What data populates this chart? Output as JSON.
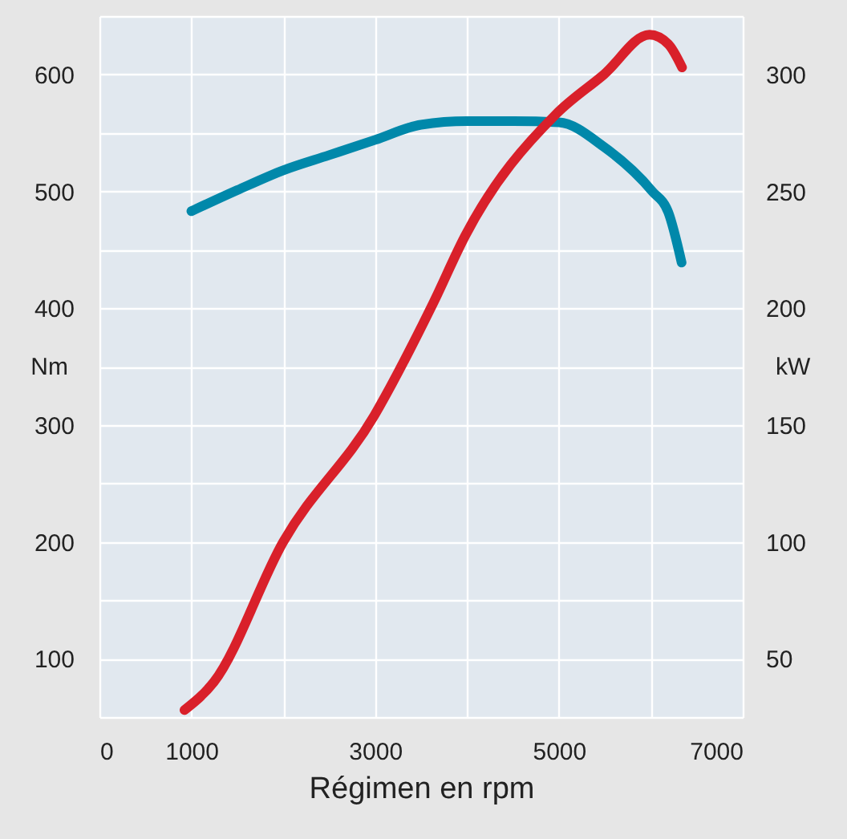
{
  "chart_data": {
    "type": "line",
    "xlabel": "Régimen en rpm",
    "ylabel": "Nm",
    "y2label": "kW",
    "xlim": [
      0,
      7000
    ],
    "xticks": [
      0,
      1000,
      {
        "value": 2000,
        "label": null
      },
      3000,
      {
        "value": 4000,
        "label": null
      },
      5000,
      {
        "value": 6000,
        "label": null
      },
      7000
    ],
    "ylim": [
      50,
      650
    ],
    "yticks": [
      {
        "value": 50,
        "label": null
      },
      100,
      {
        "value": 150,
        "label": null
      },
      200,
      {
        "value": 250,
        "label": null
      },
      300,
      {
        "value": 350,
        "label": null
      },
      400,
      {
        "value": 450,
        "label": null
      },
      500,
      {
        "value": 550,
        "label": null
      },
      600,
      {
        "value": 650,
        "label": null
      }
    ],
    "y2lim": [
      25,
      325
    ],
    "y2ticks": [
      50,
      100,
      150,
      200,
      250,
      300
    ],
    "grid": true,
    "line_style": "solid",
    "marker": "none",
    "series": [
      {
        "color": "#0088aa",
        "x": [
          1000,
          1500,
          2000,
          2500,
          3000,
          3500,
          4000,
          4500,
          5000,
          5490,
          6015,
          6190,
          6335
        ],
        "values": [
          483,
          501,
          518,
          531,
          544,
          557,
          560,
          560,
          559,
          538,
          500,
          482,
          439
        ]
      },
      {
        "color": "#d9202a",
        "axis": "y2",
        "x": [
          925,
          1245,
          2000,
          2990,
          3630,
          3980,
          4968,
          5490,
          5985,
          6190,
          6340
        ],
        "values": [
          28,
          40,
          100,
          154,
          202,
          231,
          283,
          300,
          317,
          313,
          303
        ]
      }
    ]
  }
}
